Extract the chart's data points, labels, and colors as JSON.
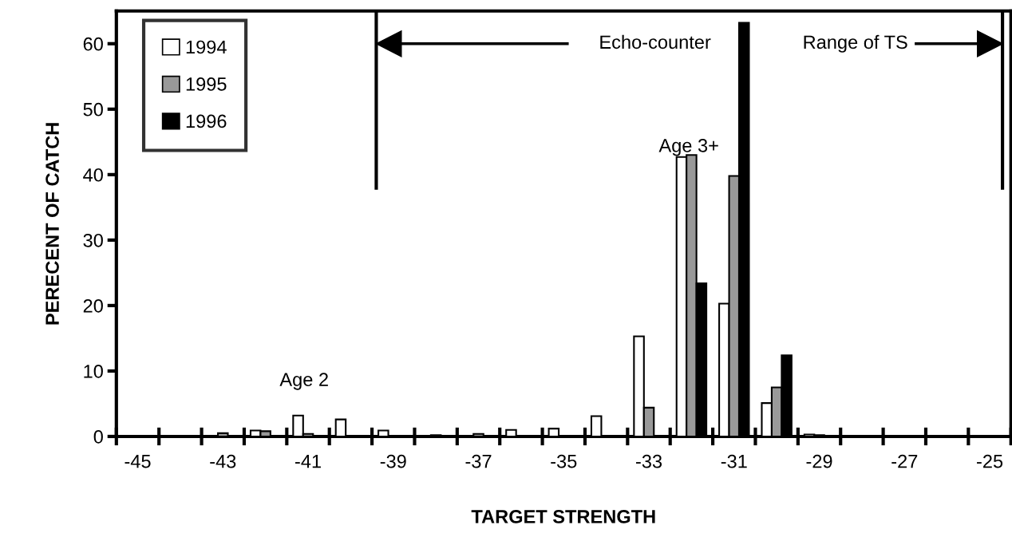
{
  "chart_data": {
    "type": "bar",
    "xlabel": "TARGET STRENGTH",
    "ylabel": "PERECENT OF CATCH",
    "categories": [
      "-45",
      null,
      "-43",
      null,
      "-41",
      null,
      "-39",
      null,
      "-37",
      null,
      "-35",
      null,
      "-33",
      null,
      "-31",
      null,
      "-29",
      null,
      "-27",
      null,
      "-25"
    ],
    "series": [
      {
        "name": "1994",
        "color": "#ffffff",
        "values": [
          null,
          null,
          null,
          0.9,
          3.2,
          2.6,
          0.9,
          null,
          null,
          1.0,
          1.2,
          3.1,
          15.3,
          42.7,
          20.3,
          5.1,
          0.3,
          null,
          null,
          null,
          null
        ]
      },
      {
        "name": "1995",
        "color": "#999999",
        "values": [
          null,
          null,
          0.5,
          0.8,
          0.4,
          null,
          null,
          0.2,
          0.4,
          null,
          null,
          null,
          4.4,
          43.0,
          39.8,
          7.5,
          0.2,
          null,
          null,
          null,
          null
        ]
      },
      {
        "name": "1996",
        "color": "#000000",
        "values": [
          null,
          null,
          null,
          null,
          null,
          null,
          null,
          null,
          null,
          null,
          null,
          null,
          null,
          23.4,
          63.2,
          12.4,
          null,
          null,
          null,
          null,
          null
        ]
      }
    ],
    "ylim": [
      0,
      65
    ],
    "yticks": [
      0,
      10,
      20,
      30,
      40,
      50,
      60
    ],
    "annotations": [
      "Age 2",
      "Age 3+",
      "Echo-counter",
      "Range of TS"
    ],
    "legend": "top left",
    "grid": false
  }
}
